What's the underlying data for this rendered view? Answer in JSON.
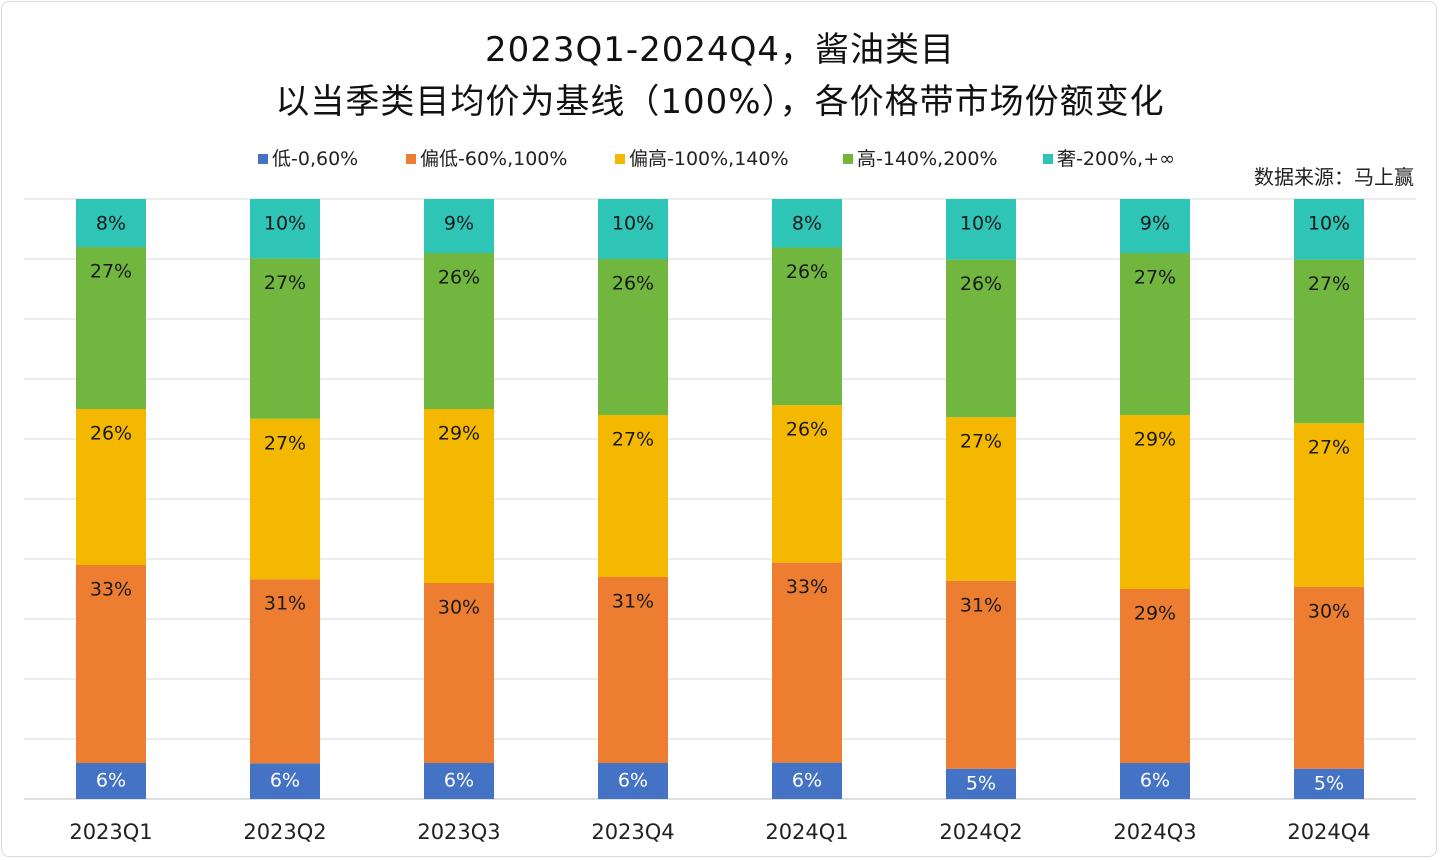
{
  "chart_data": {
    "type": "bar",
    "stacked": true,
    "title": "2023Q1-2024Q4，酱油类目",
    "subtitle": "以当季类目均价为基线（100%），各价格带市场份额变化",
    "source": "数据来源：马上赢",
    "categories": [
      "2023Q1",
      "2023Q2",
      "2023Q3",
      "2023Q4",
      "2024Q1",
      "2024Q2",
      "2024Q3",
      "2024Q4"
    ],
    "ylim": [
      0,
      100
    ],
    "grid": true,
    "legend_position": "top",
    "series": [
      {
        "name": "低-0,60%",
        "color": "#4472c4",
        "values": [
          6,
          6,
          6,
          6,
          6,
          5,
          6,
          5
        ],
        "labels": [
          "6%",
          "6%",
          "6%",
          "6%",
          "6%",
          "5%",
          "6%",
          "5%"
        ]
      },
      {
        "name": "偏低-60%,100%",
        "color": "#ed7d31",
        "values": [
          33,
          31,
          30,
          31,
          33,
          31,
          29,
          30
        ],
        "labels": [
          "33%",
          "31%",
          "30%",
          "31%",
          "33%",
          "31%",
          "29%",
          "30%"
        ]
      },
      {
        "name": "偏高-100%,140%",
        "color": "#f4b800",
        "values": [
          26,
          27,
          29,
          27,
          26,
          27,
          29,
          27
        ],
        "labels": [
          "26%",
          "27%",
          "29%",
          "27%",
          "26%",
          "27%",
          "29%",
          "27%"
        ]
      },
      {
        "name": "高-140%,200%",
        "color": "#70b63f",
        "values": [
          27,
          27,
          26,
          26,
          26,
          26,
          27,
          27
        ],
        "labels": [
          "27%",
          "27%",
          "26%",
          "26%",
          "26%",
          "26%",
          "27%",
          "27%"
        ]
      },
      {
        "name": "奢-200%,+∞",
        "color": "#2ec4b6",
        "values": [
          8,
          10,
          9,
          10,
          8,
          10,
          9,
          10
        ],
        "labels": [
          "8%",
          "10%",
          "9%",
          "10%",
          "8%",
          "10%",
          "9%",
          "10%"
        ]
      }
    ]
  }
}
